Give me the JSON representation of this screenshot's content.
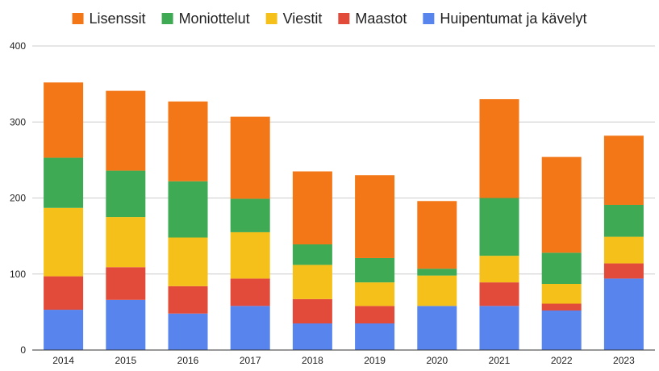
{
  "chart_data": {
    "type": "bar",
    "stacked": true,
    "categories": [
      "2014",
      "2015",
      "2016",
      "2017",
      "2018",
      "2019",
      "2020",
      "2021",
      "2022",
      "2023"
    ],
    "series": [
      {
        "name": "Huipentumat ja kävelyt",
        "color": "#5884ee",
        "values": [
          53,
          66,
          48,
          58,
          35,
          35,
          58,
          58,
          52,
          94
        ]
      },
      {
        "name": "Maastot",
        "color": "#e24b3a",
        "values": [
          44,
          43,
          36,
          36,
          32,
          23,
          0,
          31,
          9,
          20
        ]
      },
      {
        "name": "Viestit",
        "color": "#f5c01a",
        "values": [
          90,
          66,
          64,
          61,
          45,
          31,
          40,
          35,
          26,
          35
        ]
      },
      {
        "name": "Moniottelut",
        "color": "#3eaa54",
        "values": [
          66,
          61,
          74,
          44,
          27,
          32,
          9,
          76,
          41,
          42
        ]
      },
      {
        "name": "Lisenssit",
        "color": "#f47717",
        "values": [
          99,
          105,
          105,
          108,
          96,
          109,
          89,
          130,
          126,
          91
        ]
      }
    ],
    "legend_order": [
      "Lisenssit",
      "Moniottelut",
      "Viestit",
      "Maastot",
      "Huipentumat ja kävelyt"
    ],
    "legend_position": "top",
    "yticks": [
      "0",
      "100",
      "200",
      "300",
      "400"
    ],
    "ylim": [
      0,
      400
    ],
    "grid": true,
    "title": "",
    "xlabel": "",
    "ylabel": ""
  }
}
